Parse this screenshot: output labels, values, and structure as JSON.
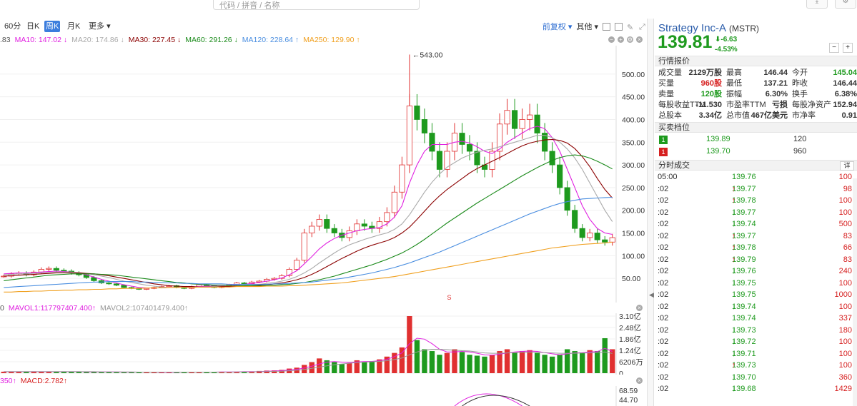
{
  "search": {
    "placeholder": "代码 / 拼音 / 名称"
  },
  "tabs": {
    "items": [
      "60分",
      "日K",
      "周K",
      "月K",
      "更多"
    ],
    "active": "周K",
    "more_arrow": "▾",
    "adjust": "前复权 ▾",
    "other": "其他 ▾"
  },
  "ma_legend": [
    {
      "label": ".83",
      "color": "#555555"
    },
    {
      "label": "MA10: 147.02 ↓",
      "color": "#e020e0"
    },
    {
      "label": "MA20: 174.86 ↓",
      "color": "#aaaaaa"
    },
    {
      "label": "MA30: 227.45 ↓",
      "color": "#8b0000"
    },
    {
      "label": "MA60: 291.26 ↓",
      "color": "#1a8a1a"
    },
    {
      "label": "MA120: 228.64 ↑",
      "color": "#4a8ee0"
    },
    {
      "label": "MA250: 129.90 ↑",
      "color": "#f0a020"
    }
  ],
  "vol_legend": [
    {
      "label": "0",
      "color": "#555555"
    },
    {
      "label": "MAVOL1:117797407.400↑",
      "color": "#e020e0"
    },
    {
      "label": "MAVOL2:107401479.400↑",
      "color": "#999999"
    }
  ],
  "macd_legend": [
    {
      "label": "350↑",
      "color": "#e020e0"
    },
    {
      "label": "MACD:2.782↑",
      "color": "#d62020"
    }
  ],
  "chart_data": {
    "type": "candlestick",
    "title": "",
    "price_axis": {
      "ticks": [
        500,
        450,
        400,
        350,
        300,
        250,
        200,
        150,
        100,
        50
      ],
      "labels": [
        "500.00",
        "450.00",
        "400.00",
        "350.00",
        "300.00",
        "250.00",
        "200.00",
        "150.00",
        "100.00",
        "50.00"
      ],
      "ylim": [
        0,
        550
      ]
    },
    "max_annotation": "543.00",
    "max_value": 543,
    "split_marker": "S",
    "volume_axis": {
      "labels": [
        "3.10亿",
        "2.48亿",
        "1.86亿",
        "1.24亿",
        "6206万",
        "0"
      ],
      "ticks": [
        3.1,
        2.48,
        1.86,
        1.24,
        0.6206,
        0
      ],
      "unit_note": "亿"
    },
    "macd_axis": {
      "labels": [
        "68.59",
        "44.70"
      ]
    },
    "price_series": [
      {
        "name": "close",
        "values": [
          55,
          60,
          62,
          58,
          64,
          70,
          72,
          68,
          66,
          62,
          58,
          52,
          45,
          40,
          38,
          35,
          30,
          28,
          26,
          28,
          30,
          32,
          34,
          30,
          28,
          32,
          36,
          34,
          30,
          32,
          36,
          40,
          38,
          42,
          44,
          48,
          50,
          56,
          70,
          90,
          150,
          165,
          180,
          160,
          150,
          140,
          155,
          170,
          165,
          160,
          175,
          195,
          240,
          300,
          430,
          400,
          370,
          330,
          290,
          330,
          370,
          345,
          330,
          300,
          290,
          330,
          390,
          420,
          380,
          400,
          410,
          370,
          330,
          300,
          250,
          200,
          160,
          140,
          150,
          135,
          130,
          139.81
        ]
      },
      {
        "name": "MA10",
        "values": [
          60,
          61,
          62,
          62,
          63,
          64,
          65,
          66,
          65,
          64,
          62,
          58,
          53,
          48,
          44,
          40,
          36,
          33,
          30,
          29,
          29,
          29,
          30,
          30,
          30,
          31,
          32,
          33,
          33,
          33,
          34,
          36,
          37,
          39,
          41,
          44,
          47,
          51,
          58,
          67,
          82,
          98,
          115,
          128,
          138,
          145,
          150,
          155,
          158,
          160,
          162,
          170,
          185,
          210,
          260,
          300,
          330,
          345,
          345,
          345,
          350,
          352,
          348,
          340,
          330,
          325,
          335,
          350,
          360,
          370,
          380,
          385,
          380,
          360,
          330,
          290,
          250,
          210,
          180,
          160,
          150,
          147
        ]
      },
      {
        "name": "MA20",
        "values": [
          58,
          59,
          60,
          60,
          61,
          62,
          63,
          64,
          64,
          64,
          63,
          61,
          58,
          55,
          52,
          48,
          44,
          41,
          38,
          35,
          33,
          31,
          30,
          30,
          30,
          30,
          31,
          31,
          32,
          32,
          33,
          34,
          35,
          36,
          37,
          39,
          41,
          44,
          48,
          54,
          62,
          72,
          84,
          95,
          106,
          116,
          124,
          130,
          136,
          141,
          146,
          150,
          158,
          170,
          190,
          215,
          240,
          262,
          280,
          295,
          305,
          315,
          322,
          328,
          332,
          335,
          340,
          345,
          350,
          355,
          360,
          365,
          365,
          360,
          350,
          335,
          315,
          290,
          260,
          230,
          200,
          175
        ]
      },
      {
        "name": "MA30",
        "values": [
          55,
          56,
          57,
          58,
          59,
          60,
          61,
          62,
          62,
          62,
          62,
          61,
          60,
          58,
          56,
          53,
          50,
          47,
          44,
          41,
          38,
          36,
          34,
          33,
          32,
          32,
          31,
          31,
          31,
          32,
          32,
          33,
          33,
          34,
          35,
          36,
          38,
          40,
          43,
          47,
          52,
          59,
          67,
          76,
          85,
          94,
          102,
          110,
          117,
          123,
          128,
          133,
          140,
          150,
          163,
          180,
          198,
          216,
          232,
          246,
          258,
          270,
          282,
          292,
          300,
          308,
          316,
          325,
          334,
          342,
          348,
          352,
          355,
          356,
          354,
          348,
          336,
          318,
          296,
          270,
          246,
          227
        ]
      },
      {
        "name": "MA60",
        "values": [
          45,
          47,
          49,
          51,
          53,
          55,
          57,
          58,
          59,
          60,
          60,
          60,
          60,
          59,
          58,
          57,
          55,
          53,
          51,
          49,
          47,
          45,
          43,
          41,
          40,
          38,
          37,
          36,
          35,
          35,
          34,
          34,
          34,
          34,
          34,
          35,
          35,
          36,
          37,
          39,
          41,
          44,
          47,
          51,
          55,
          60,
          65,
          70,
          75,
          80,
          86,
          92,
          99,
          106,
          115,
          125,
          136,
          148,
          160,
          172,
          183,
          194,
          205,
          216,
          226,
          236,
          246,
          256,
          266,
          276,
          285,
          294,
          302,
          310,
          316,
          320,
          322,
          320,
          315,
          308,
          300,
          291
        ]
      },
      {
        "name": "MA120",
        "values": [
          30,
          31,
          32,
          33,
          34,
          35,
          36,
          37,
          38,
          39,
          40,
          41,
          42,
          42,
          43,
          43,
          43,
          43,
          42,
          42,
          41,
          41,
          40,
          40,
          39,
          39,
          38,
          38,
          38,
          38,
          37,
          37,
          37,
          37,
          37,
          37,
          38,
          38,
          39,
          40,
          41,
          42,
          44,
          46,
          48,
          50,
          53,
          56,
          59,
          62,
          66,
          70,
          74,
          79,
          84,
          90,
          96,
          102,
          108,
          115,
          122,
          129,
          136,
          143,
          150,
          157,
          164,
          171,
          178,
          185,
          192,
          198,
          204,
          210,
          215,
          219,
          222,
          225,
          226,
          227,
          228,
          228.64
        ]
      },
      {
        "name": "MA250",
        "values": [
          20,
          20,
          21,
          21,
          22,
          22,
          23,
          23,
          24,
          24,
          25,
          25,
          26,
          26,
          27,
          27,
          28,
          28,
          28,
          29,
          29,
          29,
          30,
          30,
          30,
          30,
          31,
          31,
          31,
          31,
          31,
          32,
          32,
          32,
          32,
          33,
          33,
          33,
          34,
          34,
          35,
          36,
          37,
          38,
          39,
          40,
          42,
          44,
          46,
          48,
          50,
          52,
          54,
          57,
          60,
          63,
          66,
          69,
          72,
          75,
          78,
          81,
          84,
          87,
          90,
          93,
          96,
          99,
          102,
          105,
          108,
          111,
          114,
          117,
          119,
          121,
          123,
          125,
          126,
          127,
          128,
          129.9
        ]
      }
    ],
    "volume_values": [
      0.08,
      0.09,
      0.07,
      0.08,
      0.1,
      0.09,
      0.08,
      0.07,
      0.09,
      0.08,
      0.07,
      0.06,
      0.07,
      0.08,
      0.07,
      0.06,
      0.05,
      0.05,
      0.06,
      0.05,
      0.06,
      0.05,
      0.05,
      0.06,
      0.07,
      0.06,
      0.05,
      0.06,
      0.07,
      0.08,
      0.07,
      0.08,
      0.09,
      0.1,
      0.12,
      0.14,
      0.15,
      0.18,
      0.25,
      0.3,
      0.45,
      0.6,
      0.8,
      0.7,
      0.6,
      0.5,
      0.55,
      0.7,
      0.6,
      0.65,
      0.75,
      0.9,
      1.1,
      1.4,
      3.1,
      1.8,
      1.3,
      1.2,
      1.0,
      1.1,
      1.3,
      1.15,
      1.0,
      0.95,
      0.9,
      1.0,
      1.2,
      1.3,
      1.1,
      1.2,
      1.25,
      1.1,
      1.0,
      0.9,
      1.0,
      1.3,
      1.2,
      1.1,
      1.25,
      1.2,
      1.9,
      1.3
    ],
    "mavol_series": [
      {
        "name": "MAVOL1",
        "values": [
          0.08,
          0.08,
          0.08,
          0.08,
          0.08,
          0.08,
          0.08,
          0.08,
          0.08,
          0.08,
          0.08,
          0.07,
          0.07,
          0.07,
          0.07,
          0.07,
          0.06,
          0.06,
          0.06,
          0.06,
          0.06,
          0.05,
          0.05,
          0.05,
          0.06,
          0.06,
          0.06,
          0.06,
          0.06,
          0.07,
          0.07,
          0.07,
          0.08,
          0.08,
          0.09,
          0.11,
          0.12,
          0.14,
          0.17,
          0.21,
          0.28,
          0.38,
          0.5,
          0.6,
          0.63,
          0.6,
          0.58,
          0.61,
          0.63,
          0.64,
          0.68,
          0.75,
          0.9,
          1.1,
          1.6,
          1.9,
          1.85,
          1.6,
          1.3,
          1.15,
          1.15,
          1.18,
          1.15,
          1.08,
          1.0,
          0.98,
          1.03,
          1.1,
          1.15,
          1.18,
          1.2,
          1.18,
          1.12,
          1.05,
          1.0,
          1.05,
          1.1,
          1.12,
          1.15,
          1.17,
          1.35,
          1.18
        ]
      },
      {
        "name": "MAVOL2",
        "values": [
          0.08,
          0.08,
          0.08,
          0.08,
          0.08,
          0.08,
          0.08,
          0.08,
          0.08,
          0.08,
          0.08,
          0.08,
          0.08,
          0.07,
          0.07,
          0.07,
          0.07,
          0.07,
          0.06,
          0.06,
          0.06,
          0.06,
          0.06,
          0.06,
          0.06,
          0.06,
          0.06,
          0.06,
          0.06,
          0.06,
          0.06,
          0.07,
          0.07,
          0.07,
          0.08,
          0.09,
          0.1,
          0.11,
          0.13,
          0.16,
          0.2,
          0.26,
          0.33,
          0.4,
          0.46,
          0.5,
          0.54,
          0.58,
          0.6,
          0.62,
          0.64,
          0.68,
          0.74,
          0.82,
          1.0,
          1.15,
          1.25,
          1.3,
          1.3,
          1.28,
          1.25,
          1.22,
          1.2,
          1.15,
          1.1,
          1.08,
          1.08,
          1.1,
          1.12,
          1.13,
          1.14,
          1.14,
          1.12,
          1.1,
          1.08,
          1.08,
          1.08,
          1.1,
          1.1,
          1.12,
          1.15,
          1.07
        ]
      }
    ]
  },
  "quote": {
    "name": "Strategy Inc-A",
    "code": "(MSTR)",
    "price": "139.81",
    "change": "-6.63",
    "change_pct": "-4.53%",
    "arrow": "⬇",
    "section_quote": "行情报价",
    "rows": [
      [
        [
          "成交量",
          "2129万股",
          ""
        ],
        [
          "最高",
          "146.44",
          ""
        ],
        [
          "今开",
          "145.04",
          "green"
        ]
      ],
      [
        [
          "买量",
          "960股",
          "red"
        ],
        [
          "最低",
          "137.21",
          ""
        ],
        [
          "昨收",
          "146.44",
          ""
        ]
      ],
      [
        [
          "卖量",
          "120股",
          "green"
        ],
        [
          "振幅",
          "6.30%",
          ""
        ],
        [
          "换手",
          "6.38%",
          ""
        ]
      ],
      [
        [
          "每股收益TTM",
          "-11.530",
          ""
        ],
        [
          "市盈率TTM",
          "亏损",
          ""
        ],
        [
          "每股净资产",
          "152.94",
          ""
        ]
      ],
      [
        [
          "总股本",
          "3.34亿",
          ""
        ],
        [
          "总市值",
          "467亿美元",
          ""
        ],
        [
          "市净率",
          "0.91",
          ""
        ]
      ]
    ],
    "section_book": "买卖档位",
    "book": [
      {
        "level": "1",
        "price": "139.89",
        "qty": "120",
        "color": "#1e9a1e"
      },
      {
        "level": "1",
        "price": "139.70",
        "qty": "960",
        "color": "#d62020"
      }
    ],
    "section_ticks": "分时成交",
    "detail": "详",
    "ticks": [
      {
        "time": "05:00",
        "price": "139.76",
        "arrow": "",
        "arrow_color": "",
        "vol": "100",
        "vol_color": "red"
      },
      {
        "time": ":02",
        "price": "139.77",
        "arrow": "↑",
        "arrow_color": "red",
        "vol": "98",
        "vol_color": "red"
      },
      {
        "time": ":02",
        "price": "139.78",
        "arrow": "↑",
        "arrow_color": "red",
        "vol": "100",
        "vol_color": "red"
      },
      {
        "time": ":02",
        "price": "139.77",
        "arrow": "↓",
        "arrow_color": "green",
        "vol": "100",
        "vol_color": "red"
      },
      {
        "time": ":02",
        "price": "139.74",
        "arrow": "↓",
        "arrow_color": "green",
        "vol": "500",
        "vol_color": "red"
      },
      {
        "time": ":02",
        "price": "139.77",
        "arrow": "↑",
        "arrow_color": "red",
        "vol": "83",
        "vol_color": "red"
      },
      {
        "time": ":02",
        "price": "139.78",
        "arrow": "↑",
        "arrow_color": "red",
        "vol": "66",
        "vol_color": "red"
      },
      {
        "time": ":02",
        "price": "139.79",
        "arrow": "↑",
        "arrow_color": "red",
        "vol": "83",
        "vol_color": "red"
      },
      {
        "time": ":02",
        "price": "139.76",
        "arrow": "↓",
        "arrow_color": "green",
        "vol": "240",
        "vol_color": "red"
      },
      {
        "time": ":02",
        "price": "139.75",
        "arrow": "↓",
        "arrow_color": "green",
        "vol": "100",
        "vol_color": "red"
      },
      {
        "time": ":02",
        "price": "139.75",
        "arrow": "",
        "arrow_color": "",
        "vol": "1000",
        "vol_color": "red"
      },
      {
        "time": ":02",
        "price": "139.74",
        "arrow": "↓",
        "arrow_color": "green",
        "vol": "100",
        "vol_color": "red"
      },
      {
        "time": ":02",
        "price": "139.74",
        "arrow": "",
        "arrow_color": "",
        "vol": "337",
        "vol_color": "red"
      },
      {
        "time": ":02",
        "price": "139.73",
        "arrow": "↓",
        "arrow_color": "green",
        "vol": "180",
        "vol_color": "red"
      },
      {
        "time": ":02",
        "price": "139.72",
        "arrow": "↓",
        "arrow_color": "green",
        "vol": "100",
        "vol_color": "red"
      },
      {
        "time": ":02",
        "price": "139.71",
        "arrow": "↓",
        "arrow_color": "green",
        "vol": "100",
        "vol_color": "red"
      },
      {
        "time": ":02",
        "price": "139.73",
        "arrow": "↑",
        "arrow_color": "red",
        "vol": "100",
        "vol_color": "red"
      },
      {
        "time": ":02",
        "price": "139.70",
        "arrow": "↓",
        "arrow_color": "green",
        "vol": "360",
        "vol_color": "red"
      },
      {
        "time": ":02",
        "price": "139.68",
        "arrow": "↓",
        "arrow_color": "green",
        "vol": "1429",
        "vol_color": "red"
      }
    ]
  }
}
